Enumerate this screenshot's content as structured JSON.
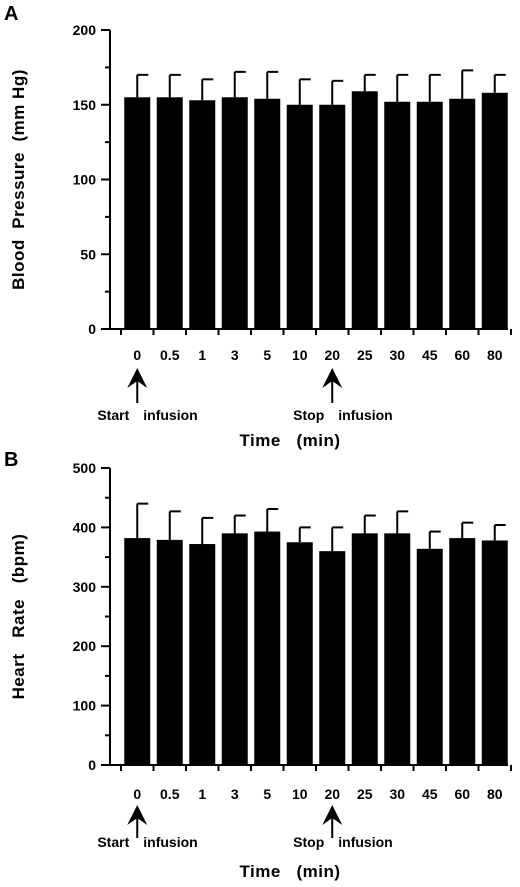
{
  "chart_data": [
    {
      "type": "bar",
      "panel": "A",
      "categories": [
        "0",
        "0.5",
        "1",
        "3",
        "5",
        "10",
        "20",
        "25",
        "30",
        "45",
        "60",
        "80"
      ],
      "values": [
        155,
        155,
        153,
        155,
        154,
        150,
        150,
        159,
        152,
        152,
        154,
        158
      ],
      "errors": [
        15,
        15,
        14,
        17,
        18,
        17,
        16,
        11,
        18,
        18,
        19,
        12
      ],
      "xlabel": "Time   (min)",
      "ylabel": "Blood  Pressure  (mm Hg)",
      "ylim": [
        0,
        200
      ],
      "yticks": [
        0,
        50,
        100,
        150,
        200
      ],
      "annotations": [
        {
          "category": "0",
          "text": "Start",
          "text2": "infusion"
        },
        {
          "category": "20",
          "text": "Stop",
          "text2": "infusion"
        }
      ],
      "grid": false
    },
    {
      "type": "bar",
      "panel": "B",
      "categories": [
        "0",
        "0.5",
        "1",
        "3",
        "5",
        "10",
        "20",
        "25",
        "30",
        "45",
        "60",
        "80"
      ],
      "values": [
        382,
        379,
        372,
        390,
        393,
        375,
        360,
        390,
        390,
        364,
        382,
        378
      ],
      "errors": [
        58,
        48,
        44,
        30,
        38,
        25,
        40,
        30,
        37,
        29,
        26,
        26
      ],
      "xlabel": "Time   (min)",
      "ylabel": "Heart   Rate   (bpm)",
      "ylim": [
        0,
        500
      ],
      "yticks": [
        0,
        100,
        200,
        300,
        400,
        500
      ],
      "annotations": [
        {
          "category": "0",
          "text": "Start",
          "text2": "infusion"
        },
        {
          "category": "20",
          "text": "Stop",
          "text2": "infusion"
        }
      ],
      "grid": false
    }
  ]
}
